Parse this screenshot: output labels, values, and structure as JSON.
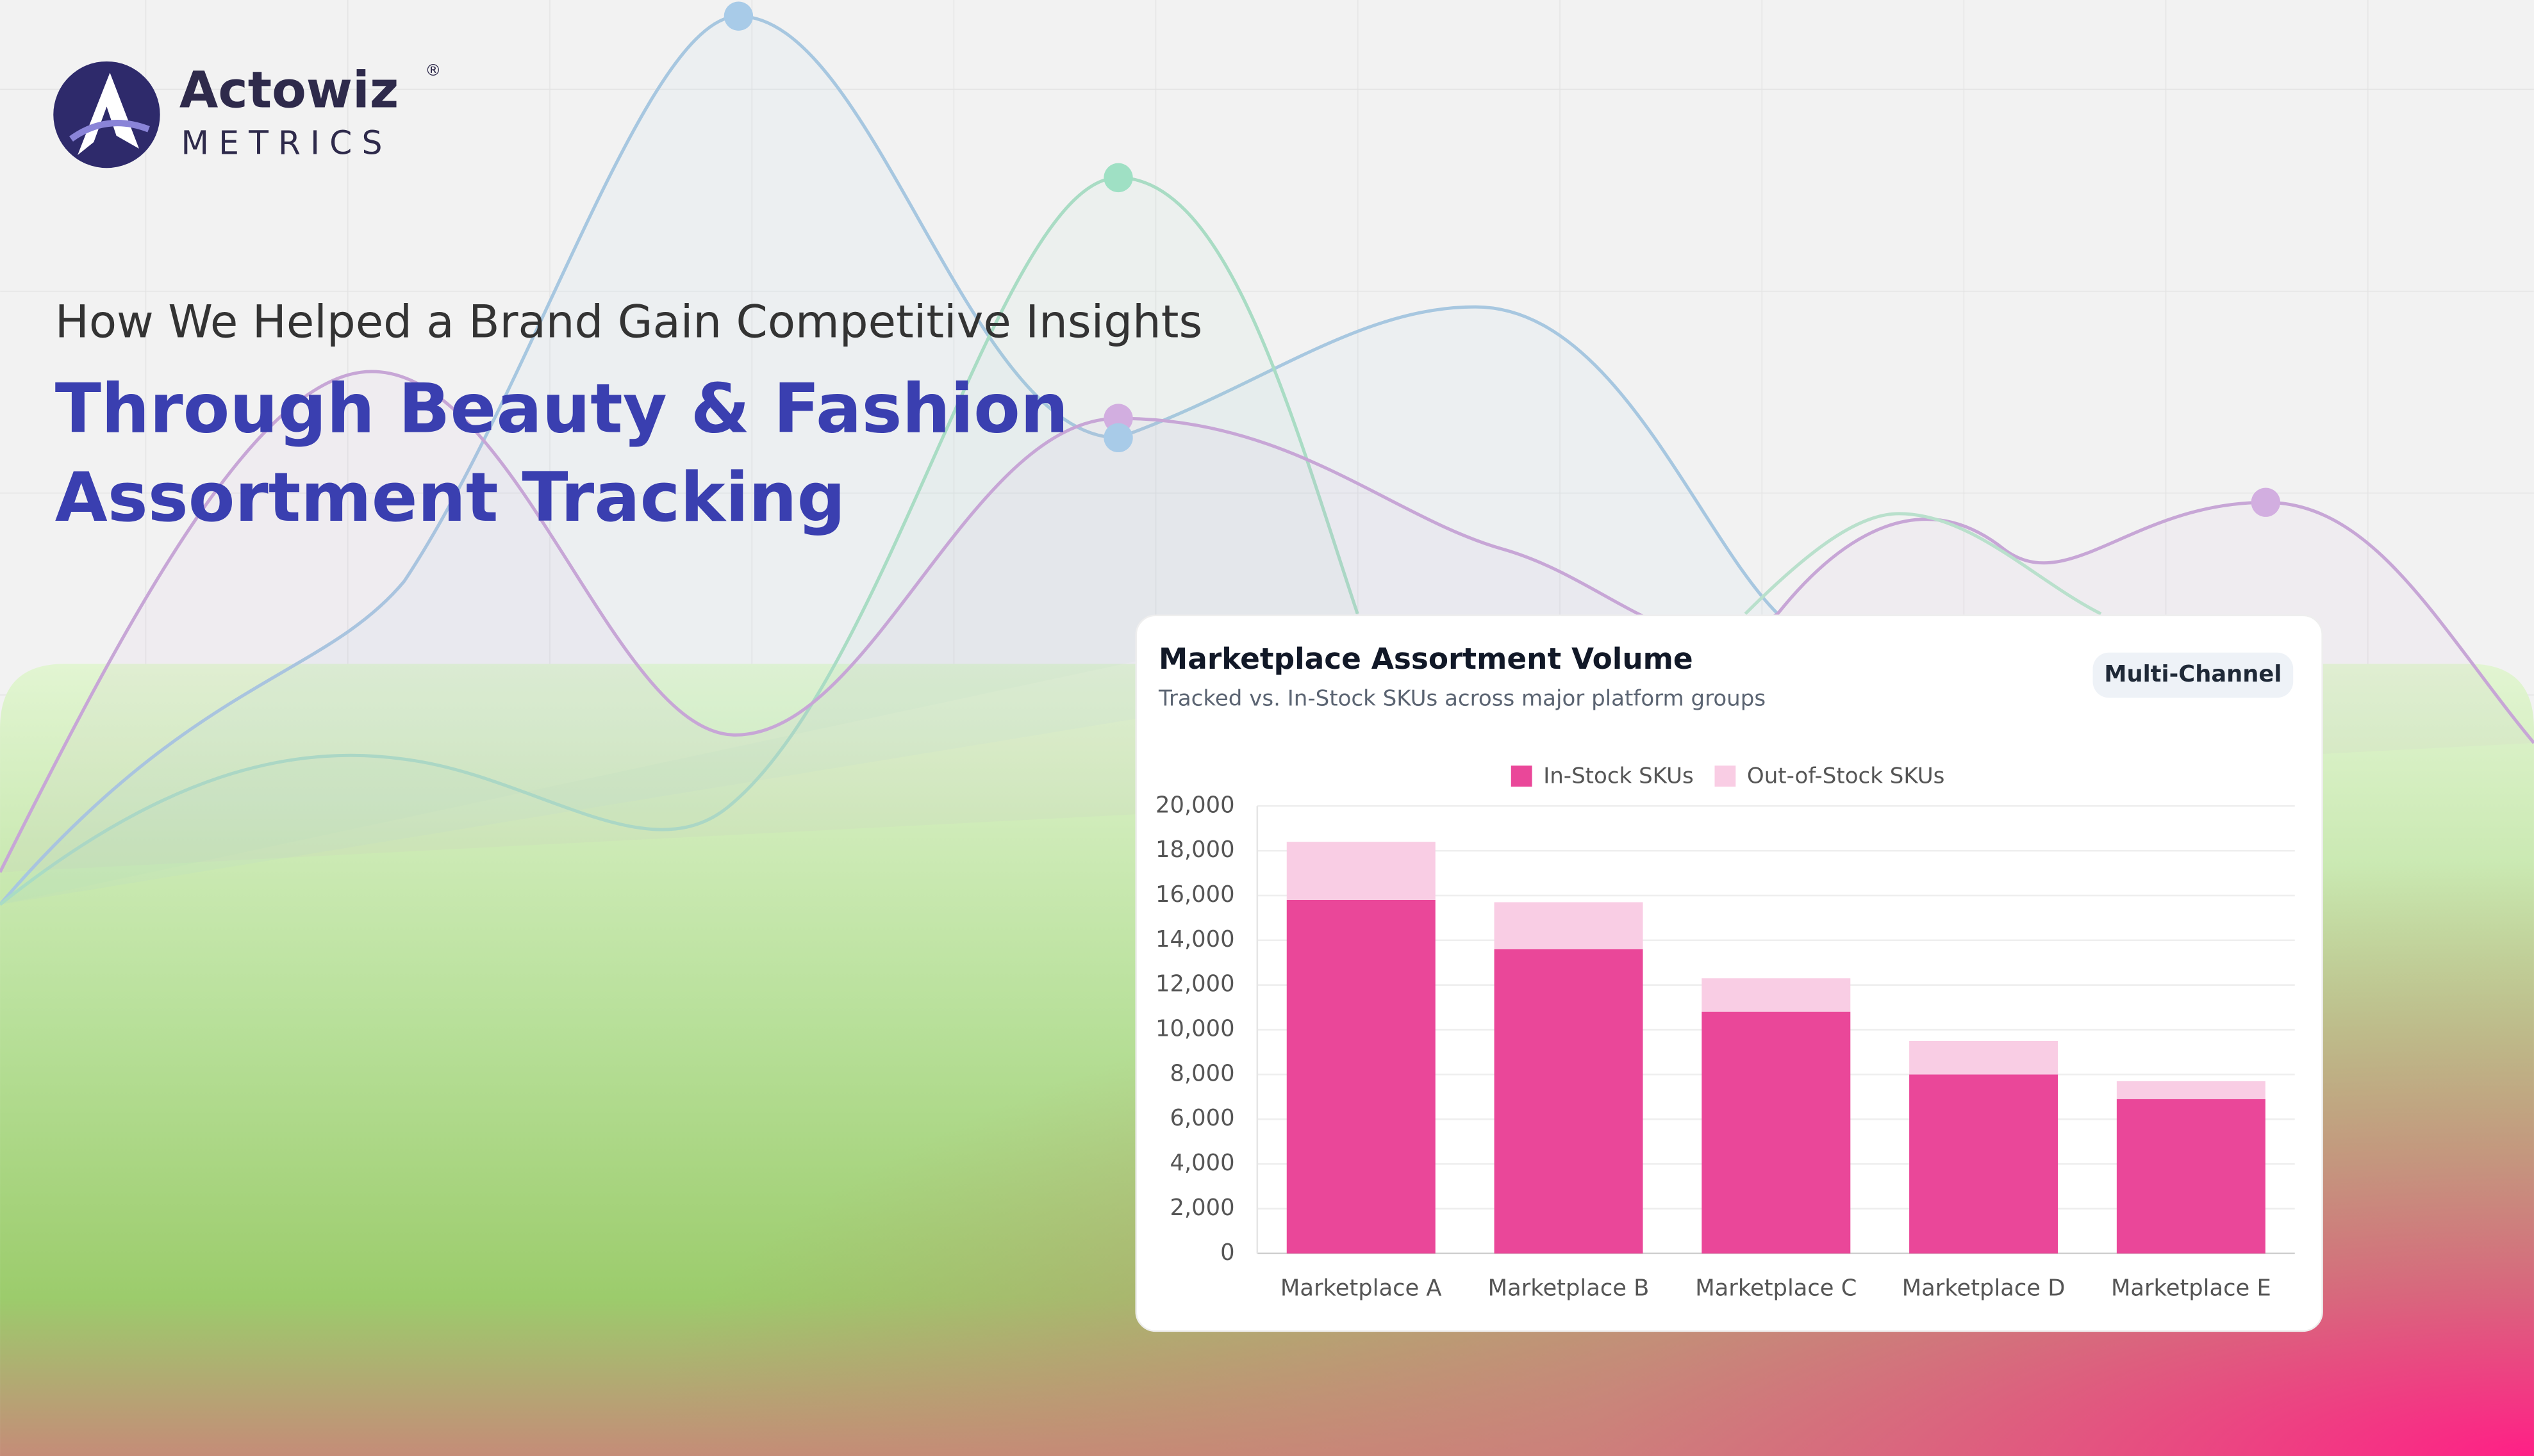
{
  "brand": {
    "name": "Actowiz",
    "registered": "®",
    "tagline": "METRICS"
  },
  "headline": {
    "intro": "How We Helped a Brand Gain Competitive Insights",
    "lines": [
      "Through Beauty & Fashion",
      "Assortment Tracking"
    ]
  },
  "card": {
    "badge": "Multi-Channel"
  },
  "chart_data": {
    "type": "stacked-bar",
    "title": "Marketplace Assortment Volume",
    "subtitle": "Tracked vs. In-Stock SKUs across major platform groups",
    "categories": [
      "Marketplace A",
      "Marketplace B",
      "Marketplace C",
      "Marketplace D",
      "Marketplace E"
    ],
    "series": [
      {
        "name": "In-Stock SKUs",
        "color": "#ea4799",
        "values": [
          15800,
          13600,
          10800,
          8000,
          6900
        ]
      },
      {
        "name": "Out-of-Stock SKUs",
        "color": "#f9cde4",
        "values": [
          2600,
          2100,
          1500,
          1500,
          800
        ]
      }
    ],
    "ylim": [
      0,
      20000
    ],
    "yticks": [
      0,
      {
        "value": 2000,
        "label": "2,000"
      },
      {
        "value": 4000,
        "label": "4,000"
      },
      {
        "value": 6000,
        "label": "6,000"
      },
      {
        "value": 8000,
        "label": "8,000"
      },
      {
        "value": 10000,
        "label": "10,000"
      },
      {
        "value": 12000,
        "label": "12,000"
      },
      {
        "value": 14000,
        "label": "14,000"
      },
      {
        "value": 16000,
        "label": "16,000"
      },
      {
        "value": 18000,
        "label": "18,000"
      },
      {
        "value": 20000,
        "label": "20,000"
      }
    ],
    "grid": true,
    "legend": "top"
  }
}
